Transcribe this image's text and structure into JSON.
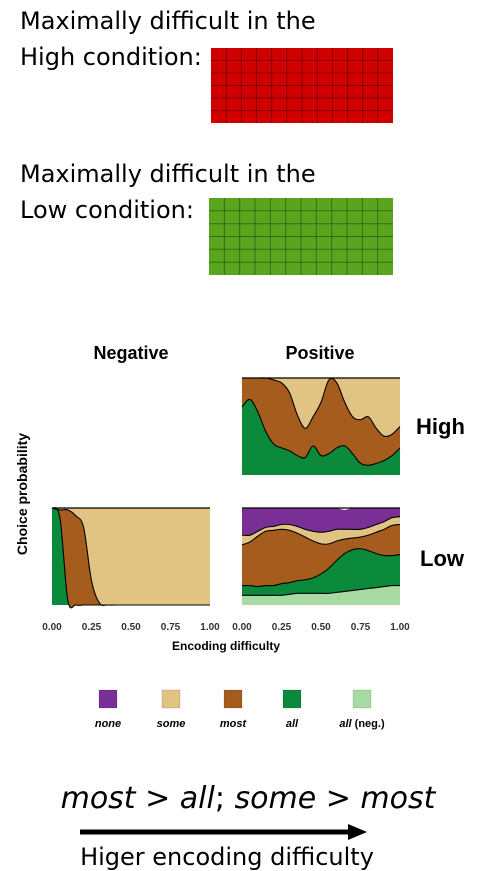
{
  "examples": [
    {
      "line1": "Maximally difficult in the",
      "line2": "High condition:",
      "color": "#d00000",
      "cols": 12,
      "rows": 6
    },
    {
      "line1": "Maximally difficult in the",
      "line2": "Low condition:",
      "color": "#5aa51e",
      "cols": 12,
      "rows": 6
    }
  ],
  "chart_data": {
    "type": "area",
    "ylabel": "Choice probability",
    "xlabel": "Encoding difficulty",
    "xlim": [
      0,
      1
    ],
    "ylim": [
      0,
      1
    ],
    "xticks": [
      "0.00",
      "0.25",
      "0.50",
      "0.75",
      "1.00"
    ],
    "columns": [
      "Negative",
      "Positive"
    ],
    "rows": [
      "High",
      "Low"
    ],
    "colors": {
      "none": "#7a2f96",
      "some": "#e1c383",
      "most": "#a55c1d",
      "all": "#0a8a3a",
      "all_neg": "#a8dba2"
    },
    "x": [
      0.0,
      0.05,
      0.1,
      0.15,
      0.2,
      0.25,
      0.3,
      0.35,
      0.4,
      0.45,
      0.5,
      0.55,
      0.6,
      0.65,
      0.7,
      0.75,
      0.8,
      0.85,
      0.9,
      0.95,
      1.0
    ],
    "panels": [
      {
        "column": "Negative",
        "row": "Low",
        "series": [
          {
            "name": "all",
            "values": [
              1.0,
              0.9,
              0.05,
              0,
              0,
              0,
              0,
              0,
              0,
              0,
              0,
              0,
              0,
              0,
              0,
              0,
              0,
              0,
              0,
              0,
              0
            ]
          },
          {
            "name": "most",
            "values": [
              0,
              0.08,
              0.93,
              0.92,
              0.8,
              0.25,
              0.02,
              0,
              0,
              0,
              0,
              0,
              0,
              0,
              0,
              0,
              0,
              0,
              0,
              0,
              0
            ]
          },
          {
            "name": "some",
            "values": [
              0,
              0.02,
              0.02,
              0.08,
              0.2,
              0.75,
              0.98,
              1.0,
              1.0,
              1.0,
              1.0,
              1.0,
              1.0,
              1.0,
              1.0,
              1.0,
              1.0,
              1.0,
              1.0,
              1.0,
              1.0
            ]
          }
        ]
      },
      {
        "column": "Positive",
        "row": "High",
        "series": [
          {
            "name": "all",
            "values": [
              0.7,
              0.78,
              0.65,
              0.45,
              0.32,
              0.28,
              0.25,
              0.2,
              0.18,
              0.3,
              0.2,
              0.22,
              0.28,
              0.3,
              0.22,
              0.12,
              0.1,
              0.12,
              0.15,
              0.2,
              0.28
            ]
          },
          {
            "name": "most",
            "values": [
              0.3,
              0.22,
              0.35,
              0.55,
              0.66,
              0.67,
              0.6,
              0.42,
              0.3,
              0.3,
              0.55,
              0.76,
              0.67,
              0.45,
              0.38,
              0.45,
              0.5,
              0.36,
              0.25,
              0.22,
              0.22
            ]
          },
          {
            "name": "some",
            "values": [
              0,
              0,
              0,
              0,
              0.02,
              0.05,
              0.15,
              0.38,
              0.52,
              0.4,
              0.25,
              0.02,
              0.05,
              0.25,
              0.4,
              0.43,
              0.4,
              0.52,
              0.6,
              0.58,
              0.5
            ]
          }
        ]
      },
      {
        "column": "Positive",
        "row": "Low",
        "series": [
          {
            "name": "all (neg.)",
            "values": [
              0.1,
              0.1,
              0.1,
              0.1,
              0.1,
              0.1,
              0.11,
              0.12,
              0.12,
              0.12,
              0.12,
              0.12,
              0.13,
              0.14,
              0.15,
              0.16,
              0.17,
              0.18,
              0.19,
              0.2,
              0.2
            ]
          },
          {
            "name": "all",
            "values": [
              0.1,
              0.1,
              0.09,
              0.1,
              0.1,
              0.12,
              0.12,
              0.13,
              0.14,
              0.16,
              0.2,
              0.26,
              0.33,
              0.39,
              0.42,
              0.42,
              0.39,
              0.35,
              0.32,
              0.31,
              0.32
            ]
          },
          {
            "name": "most",
            "values": [
              0.42,
              0.45,
              0.52,
              0.56,
              0.57,
              0.56,
              0.54,
              0.49,
              0.44,
              0.38,
              0.31,
              0.25,
              0.2,
              0.15,
              0.12,
              0.12,
              0.16,
              0.22,
              0.27,
              0.31,
              0.31
            ]
          },
          {
            "name": "some",
            "values": [
              0.1,
              0.07,
              0.05,
              0.04,
              0.04,
              0.05,
              0.06,
              0.07,
              0.08,
              0.1,
              0.12,
              0.13,
              0.12,
              0.1,
              0.09,
              0.08,
              0.08,
              0.08,
              0.08,
              0.08,
              0.08
            ]
          },
          {
            "name": "none",
            "values": [
              0.28,
              0.28,
              0.24,
              0.2,
              0.19,
              0.17,
              0.17,
              0.19,
              0.22,
              0.24,
              0.25,
              0.24,
              0.22,
              0.2,
              0.22,
              0.22,
              0.2,
              0.17,
              0.14,
              0.1,
              0.09
            ]
          }
        ]
      }
    ],
    "legend": [
      {
        "key": "none",
        "label": "none",
        "suffix": ""
      },
      {
        "key": "some",
        "label": "some",
        "suffix": ""
      },
      {
        "key": "most",
        "label": "most",
        "suffix": ""
      },
      {
        "key": "all",
        "label": "all",
        "suffix": ""
      },
      {
        "key": "all_neg",
        "label": "all",
        "suffix": " (neg.)"
      }
    ]
  },
  "summary": {
    "a": "most",
    "op1": " > ",
    "b": "all",
    "sep": "; ",
    "c": "some",
    "op2": " > ",
    "d": "most"
  },
  "footer": {
    "label": "Higer encoding difficulty"
  }
}
